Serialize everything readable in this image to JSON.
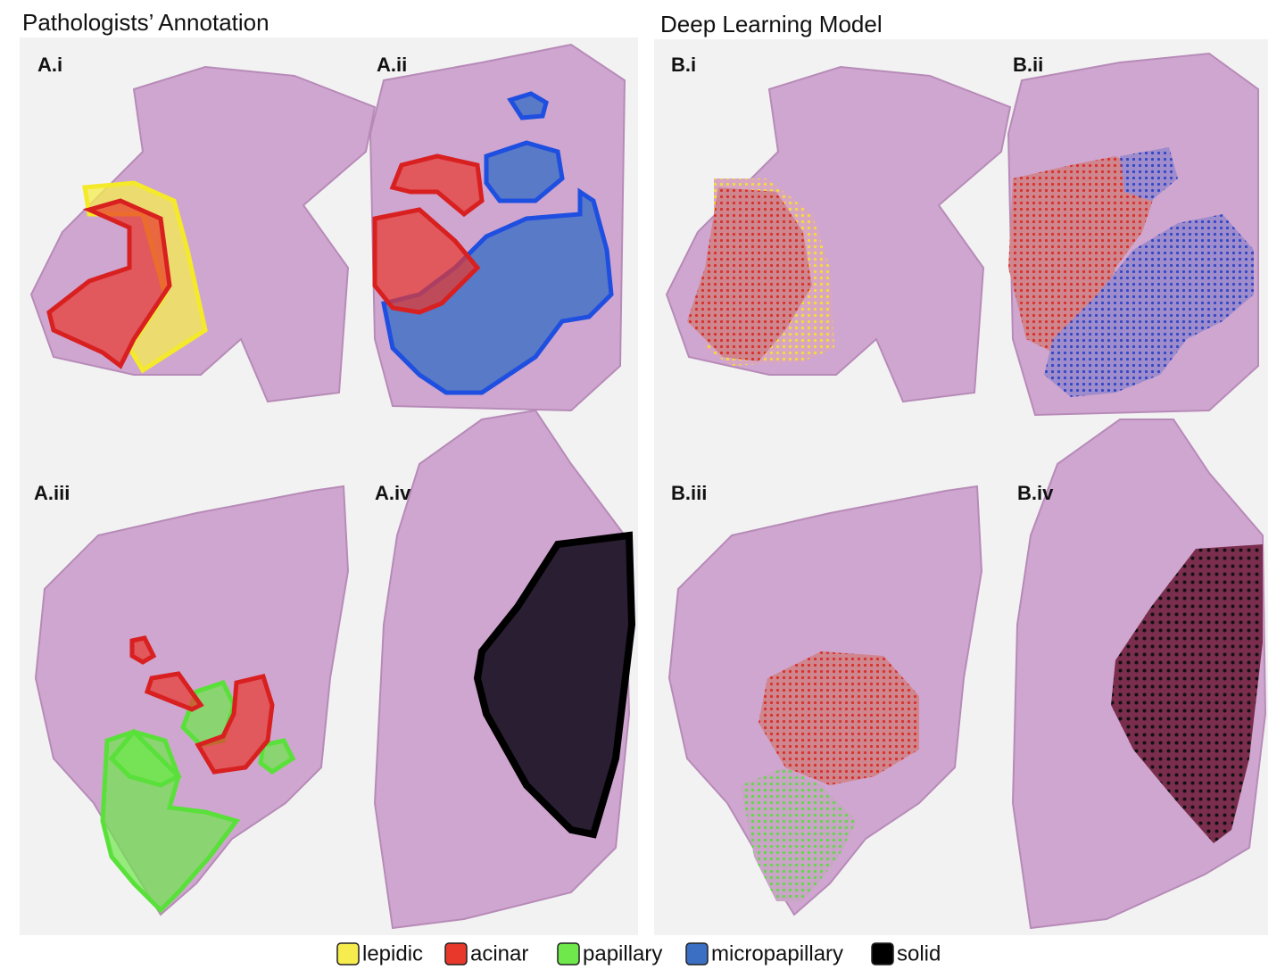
{
  "titles": {
    "left": "Pathologists’ Annotation",
    "right": "Deep Learning Model"
  },
  "panels": [
    {
      "label": "A.i"
    },
    {
      "label": "A.ii"
    },
    {
      "label": "A.iii"
    },
    {
      "label": "A.iv"
    },
    {
      "label": "B.i"
    },
    {
      "label": "B.ii"
    },
    {
      "label": "B.iii"
    },
    {
      "label": "B.iv"
    }
  ],
  "legend": [
    {
      "label": "lepidic",
      "color": "#f6ec4e"
    },
    {
      "label": "acinar",
      "color": "#e8382c"
    },
    {
      "label": "papillary",
      "color": "#6ee84a"
    },
    {
      "label": "micropapillary",
      "color": "#3a6fc4"
    },
    {
      "label": "solid",
      "color": "#000000"
    }
  ]
}
